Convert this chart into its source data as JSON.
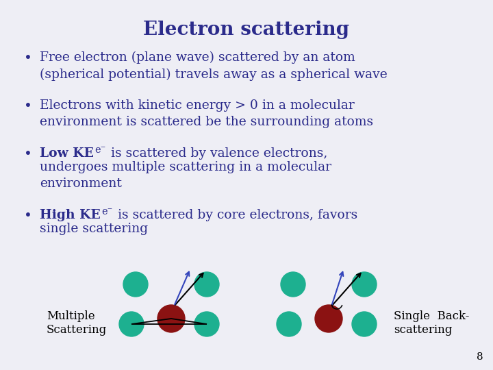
{
  "title": "Electron scattering",
  "title_color": "#2B2B8B",
  "title_fontsize": 20,
  "title_fontweight": "bold",
  "bg_color": "#EEEEF5",
  "text_color": "#2B2B8B",
  "teal_color": "#1DB090",
  "dark_red_color": "#8B1212",
  "bullet1": "Free electron (plane wave) scattered by an atom\n(spherical potential) travels away as a spherical wave",
  "bullet2": "Electrons with kinetic energy > 0 in a molecular\nenvironment is scattered be the surrounding atoms",
  "bullet3_bold": "Low KE",
  "bullet3_rest": " is scattered by valence electrons,\nundergoes multiple scattering in a molecular\nenvironment",
  "bullet4_bold": "High KE",
  "bullet4_rest": " is scattered by core electrons, favors\nsingle scattering",
  "label_multiple": "Multiple\nScattering",
  "label_single": "Single  Back-\nscattering",
  "page_number": "8",
  "body_fontsize": 13.5
}
